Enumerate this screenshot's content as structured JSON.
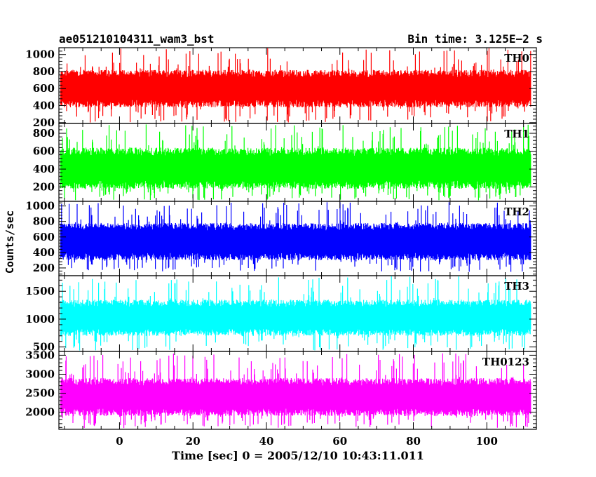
{
  "chart_data": {
    "type": "line",
    "title_left": "ae051210104311_wam3_bst",
    "title_right": "Bin time: 3.125E−2 s",
    "xlabel": "Time [sec] 0 = 2005/12/10 10:43:11.011",
    "ylabel": "Counts/sec",
    "xlim": [
      -16.5,
      113.5
    ],
    "data_x_range": [
      -16,
      112
    ],
    "x_ticks": [
      0,
      20,
      40,
      60,
      80,
      100
    ],
    "x_tick_labels": [
      "0",
      "20",
      "40",
      "60",
      "80",
      "100"
    ],
    "grid": false,
    "panels": [
      {
        "name": "TH0",
        "color": "#ff0000",
        "ylim": [
          190,
          1080
        ],
        "y_ticks": [
          200,
          400,
          600,
          800,
          1000
        ],
        "y_tick_labels": [
          "200",
          "400",
          "600",
          "800",
          "1000"
        ],
        "typical_low": 380,
        "typical_high": 820,
        "min": 200,
        "max": 1080
      },
      {
        "name": "TH1",
        "color": "#00ff00",
        "ylim": [
          40,
          910
        ],
        "y_ticks": [
          200,
          400,
          600,
          800
        ],
        "y_tick_labels": [
          "200",
          "400",
          "600",
          "800"
        ],
        "typical_low": 180,
        "typical_high": 640,
        "min": 50,
        "max": 900
      },
      {
        "name": "TH2",
        "color": "#0000ff",
        "ylim": [
          100,
          1060
        ],
        "y_ticks": [
          200,
          400,
          600,
          800,
          1000
        ],
        "y_tick_labels": [
          "200",
          "400",
          "600",
          "800",
          "1000"
        ],
        "typical_low": 300,
        "typical_high": 780,
        "min": 150,
        "max": 1050
      },
      {
        "name": "TH3",
        "color": "#00ffff",
        "ylim": [
          420,
          1780
        ],
        "y_ticks": [
          500,
          1000,
          1500
        ],
        "y_tick_labels": [
          "500",
          "1000",
          "1500"
        ],
        "typical_low": 700,
        "typical_high": 1350,
        "min": 430,
        "max": 1780
      },
      {
        "name": "TH0123",
        "color": "#ff00ff",
        "ylim": [
          1550,
          3600
        ],
        "y_ticks": [
          2000,
          2500,
          3000,
          3500
        ],
        "y_tick_labels": [
          "2000",
          "2500",
          "3000",
          "3500"
        ],
        "typical_low": 1900,
        "typical_high": 2900,
        "min": 1580,
        "max": 3550
      }
    ]
  }
}
